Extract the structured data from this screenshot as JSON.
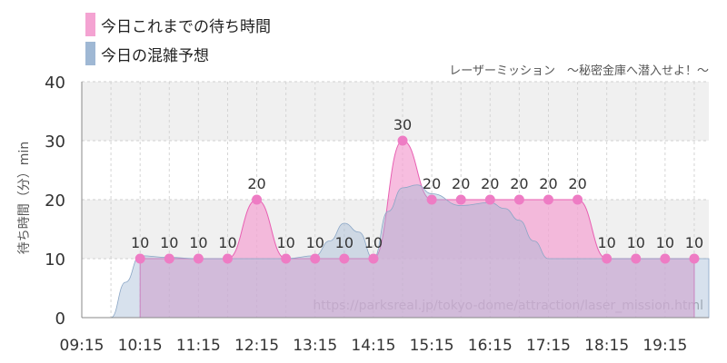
{
  "legend": {
    "today": "今日これまでの待ち時間",
    "forecast": "今日の混雑予想"
  },
  "subtitle": "レーザーミッション　～秘密金庫へ潜入せよ！～",
  "watermark": "https://parksreal.jp/tokyo-dome/attraction/laser_mission.html",
  "colors": {
    "today_fill": "#f4a3d2",
    "today_line": "#e85fb2",
    "today_point": "#ee7cc4",
    "forecast_fill": "#9fb8d4",
    "grid_band": "#f0f0f0"
  },
  "chart_data": {
    "type": "area",
    "ylabel": "待ち時間（分）min",
    "ylim": [
      0,
      40
    ],
    "yticks": [
      0,
      10,
      20,
      30,
      40
    ],
    "xlim": [
      "09:15",
      "20:00"
    ],
    "xticks": [
      "09:15",
      "10:15",
      "11:15",
      "12:15",
      "13:15",
      "14:15",
      "15:15",
      "16:15",
      "17:15",
      "18:15",
      "19:15"
    ],
    "grid": true,
    "legend_position": "top-left",
    "series": [
      {
        "name": "今日これまでの待ち時間",
        "type": "area",
        "x": [
          "10:15",
          "10:45",
          "11:15",
          "11:45",
          "12:15",
          "12:45",
          "13:15",
          "13:45",
          "14:15",
          "14:45",
          "15:15",
          "15:45",
          "16:15",
          "16:45",
          "17:15",
          "17:45",
          "18:15",
          "18:45",
          "19:15",
          "19:45"
        ],
        "values": [
          10,
          10,
          10,
          10,
          20,
          10,
          10,
          10,
          10,
          30,
          20,
          20,
          20,
          20,
          20,
          20,
          10,
          10,
          10,
          10
        ]
      },
      {
        "name": "今日の混雑予想",
        "type": "area",
        "x": [
          "09:15",
          "09:30",
          "09:45",
          "10:00",
          "10:15",
          "10:45",
          "11:15",
          "11:45",
          "12:15",
          "12:45",
          "13:15",
          "13:30",
          "13:45",
          "14:00",
          "14:15",
          "14:30",
          "14:45",
          "15:00",
          "15:15",
          "15:45",
          "16:15",
          "16:30",
          "16:45",
          "17:00",
          "17:15",
          "17:45",
          "18:15",
          "18:45",
          "19:15",
          "19:45",
          "20:00"
        ],
        "values": [
          0,
          0,
          0,
          6,
          10.5,
          10.2,
          10,
          10,
          10,
          10,
          10.5,
          13,
          16,
          14.5,
          10,
          18,
          22,
          22.5,
          21,
          19,
          19.5,
          18.5,
          16.5,
          13,
          10,
          10,
          10,
          10,
          10,
          10,
          10
        ]
      }
    ]
  }
}
